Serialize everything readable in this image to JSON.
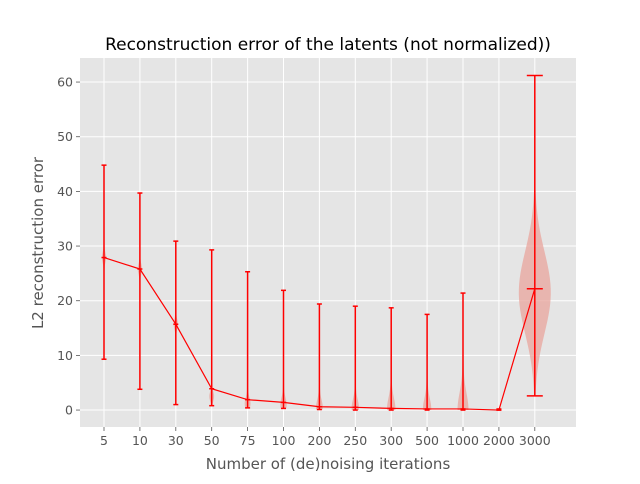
{
  "chart_data": {
    "type": "violin",
    "title": "Reconstruction error of the latents (not normalized))",
    "xlabel": "Number of (de)noising iterations",
    "ylabel": "L2 reconstruction error",
    "categories": [
      "5",
      "10",
      "30",
      "50",
      "75",
      "100",
      "200",
      "250",
      "300",
      "500",
      "1000",
      "2000",
      "3000"
    ],
    "ylim": [
      -3.1,
      64.4
    ],
    "yticks": [
      0,
      10,
      20,
      30,
      40,
      50,
      60
    ],
    "grid": true,
    "series": [
      {
        "min": [
          9.3,
          3.8,
          1.0,
          0.8,
          0.4,
          0.3,
          0.1,
          0.0,
          0.0,
          0.0,
          0.0,
          0.0,
          2.6
        ],
        "max": [
          44.8,
          39.7,
          30.9,
          29.3,
          25.3,
          21.9,
          19.4,
          19.0,
          18.7,
          17.5,
          21.4,
          0.2,
          61.2
        ],
        "mean": [
          27.9,
          25.8,
          15.7,
          3.9,
          1.9,
          1.4,
          0.6,
          0.5,
          0.3,
          0.2,
          0.2,
          0.0,
          22.2
        ],
        "spread": [
          0.2,
          0.2,
          0.2,
          0.3,
          0.5,
          0.6,
          0.7,
          0.8,
          1.0,
          1.0,
          1.5,
          0.2,
          45
        ],
        "mode": [
          27.9,
          25.8,
          15.7,
          2.5,
          1.2,
          1.0,
          0.4,
          0.3,
          0.2,
          0.1,
          0.1,
          0.0,
          21.5
        ]
      }
    ],
    "colors": {
      "line": "#ff0000",
      "violin_fill": "#e8a49c",
      "plot_bg": "#e5e5e5",
      "grid": "#ffffff",
      "text": "#555555",
      "title": "#000000"
    }
  }
}
